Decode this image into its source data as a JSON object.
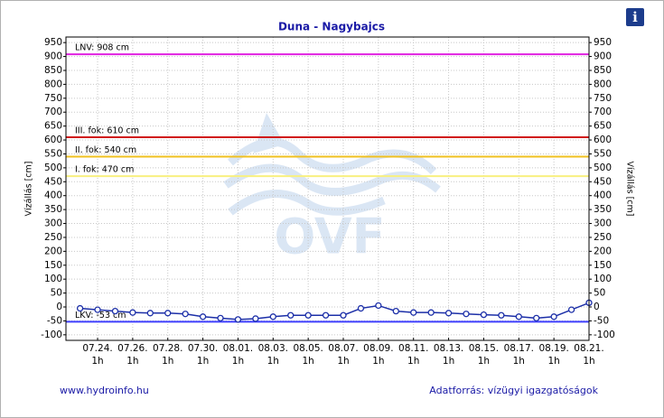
{
  "chart_data": {
    "type": "line",
    "title": "Duna - Nagybajcs",
    "ylabel": "Vízállás [cm]",
    "categories": [
      null,
      "07.24.",
      null,
      "07.26.",
      null,
      "07.28.",
      null,
      "07.30.",
      null,
      "08.01.",
      null,
      "08.03.",
      null,
      "08.05.",
      null,
      "08.07.",
      null,
      "08.09.",
      null,
      "08.11.",
      null,
      "08.13.",
      null,
      "08.15.",
      null,
      "08.17.",
      null,
      "08.19.",
      null,
      "08.21."
    ],
    "tick_hour": "1h",
    "series": [
      {
        "name": "Vízállás",
        "color": "#1c2fa8",
        "values": [
          -5,
          -10,
          -15,
          -20,
          -22,
          -22,
          -25,
          -35,
          -40,
          -45,
          -42,
          -35,
          -30,
          -30,
          -30,
          -30,
          -5,
          5,
          -15,
          -20,
          -20,
          -22,
          -25,
          -28,
          -30,
          -35,
          -40,
          -35,
          -10,
          15
        ]
      }
    ],
    "reference_lines": [
      {
        "label": "LNV: 908 cm",
        "value": 908,
        "color": "#e020e0"
      },
      {
        "label": "III. fok: 610 cm",
        "value": 610,
        "color": "#d01818"
      },
      {
        "label": "II. fok: 540 cm",
        "value": 540,
        "color": "#f0c020"
      },
      {
        "label": "I. fok: 470 cm",
        "value": 470,
        "color": "#f8f080"
      },
      {
        "label": "LKV: -53 cm",
        "value": -53,
        "color": "#4040ff"
      }
    ],
    "ylim": [
      -120,
      970
    ],
    "yticks": [
      -100,
      -50,
      0,
      50,
      100,
      150,
      200,
      250,
      300,
      350,
      400,
      450,
      500,
      550,
      600,
      650,
      700,
      750,
      800,
      850,
      900,
      950
    ],
    "grid": true,
    "watermark": "OVF",
    "footer_left": "www.hydroinfo.hu",
    "footer_right": "Adatforrás: vízügyi igazgatóságok",
    "info_icon": "i"
  }
}
